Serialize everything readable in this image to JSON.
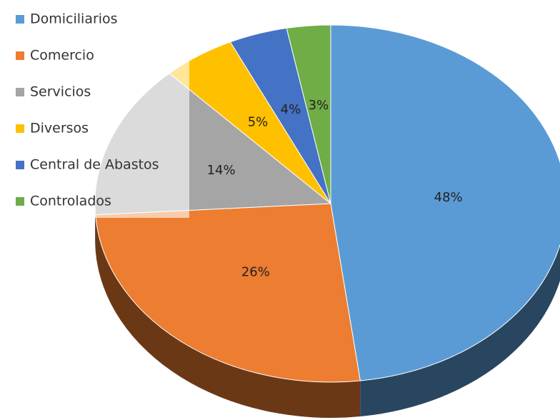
{
  "chart_data": {
    "type": "pie",
    "three_d": true,
    "categories": [
      "Domiciliarios",
      "Comercio",
      "Servicios",
      "Diversos",
      "Central de Abastos",
      "Controlados"
    ],
    "values": [
      48,
      26,
      14,
      5,
      4,
      3
    ],
    "value_labels": [
      "48%",
      "26%",
      "14%",
      "5%",
      "4%",
      "3%"
    ],
    "colors": [
      "#5b9bd5",
      "#ed7d31",
      "#a5a5a5",
      "#ffc000",
      "#4472c4",
      "#70ad47"
    ],
    "legend": "upper left"
  }
}
